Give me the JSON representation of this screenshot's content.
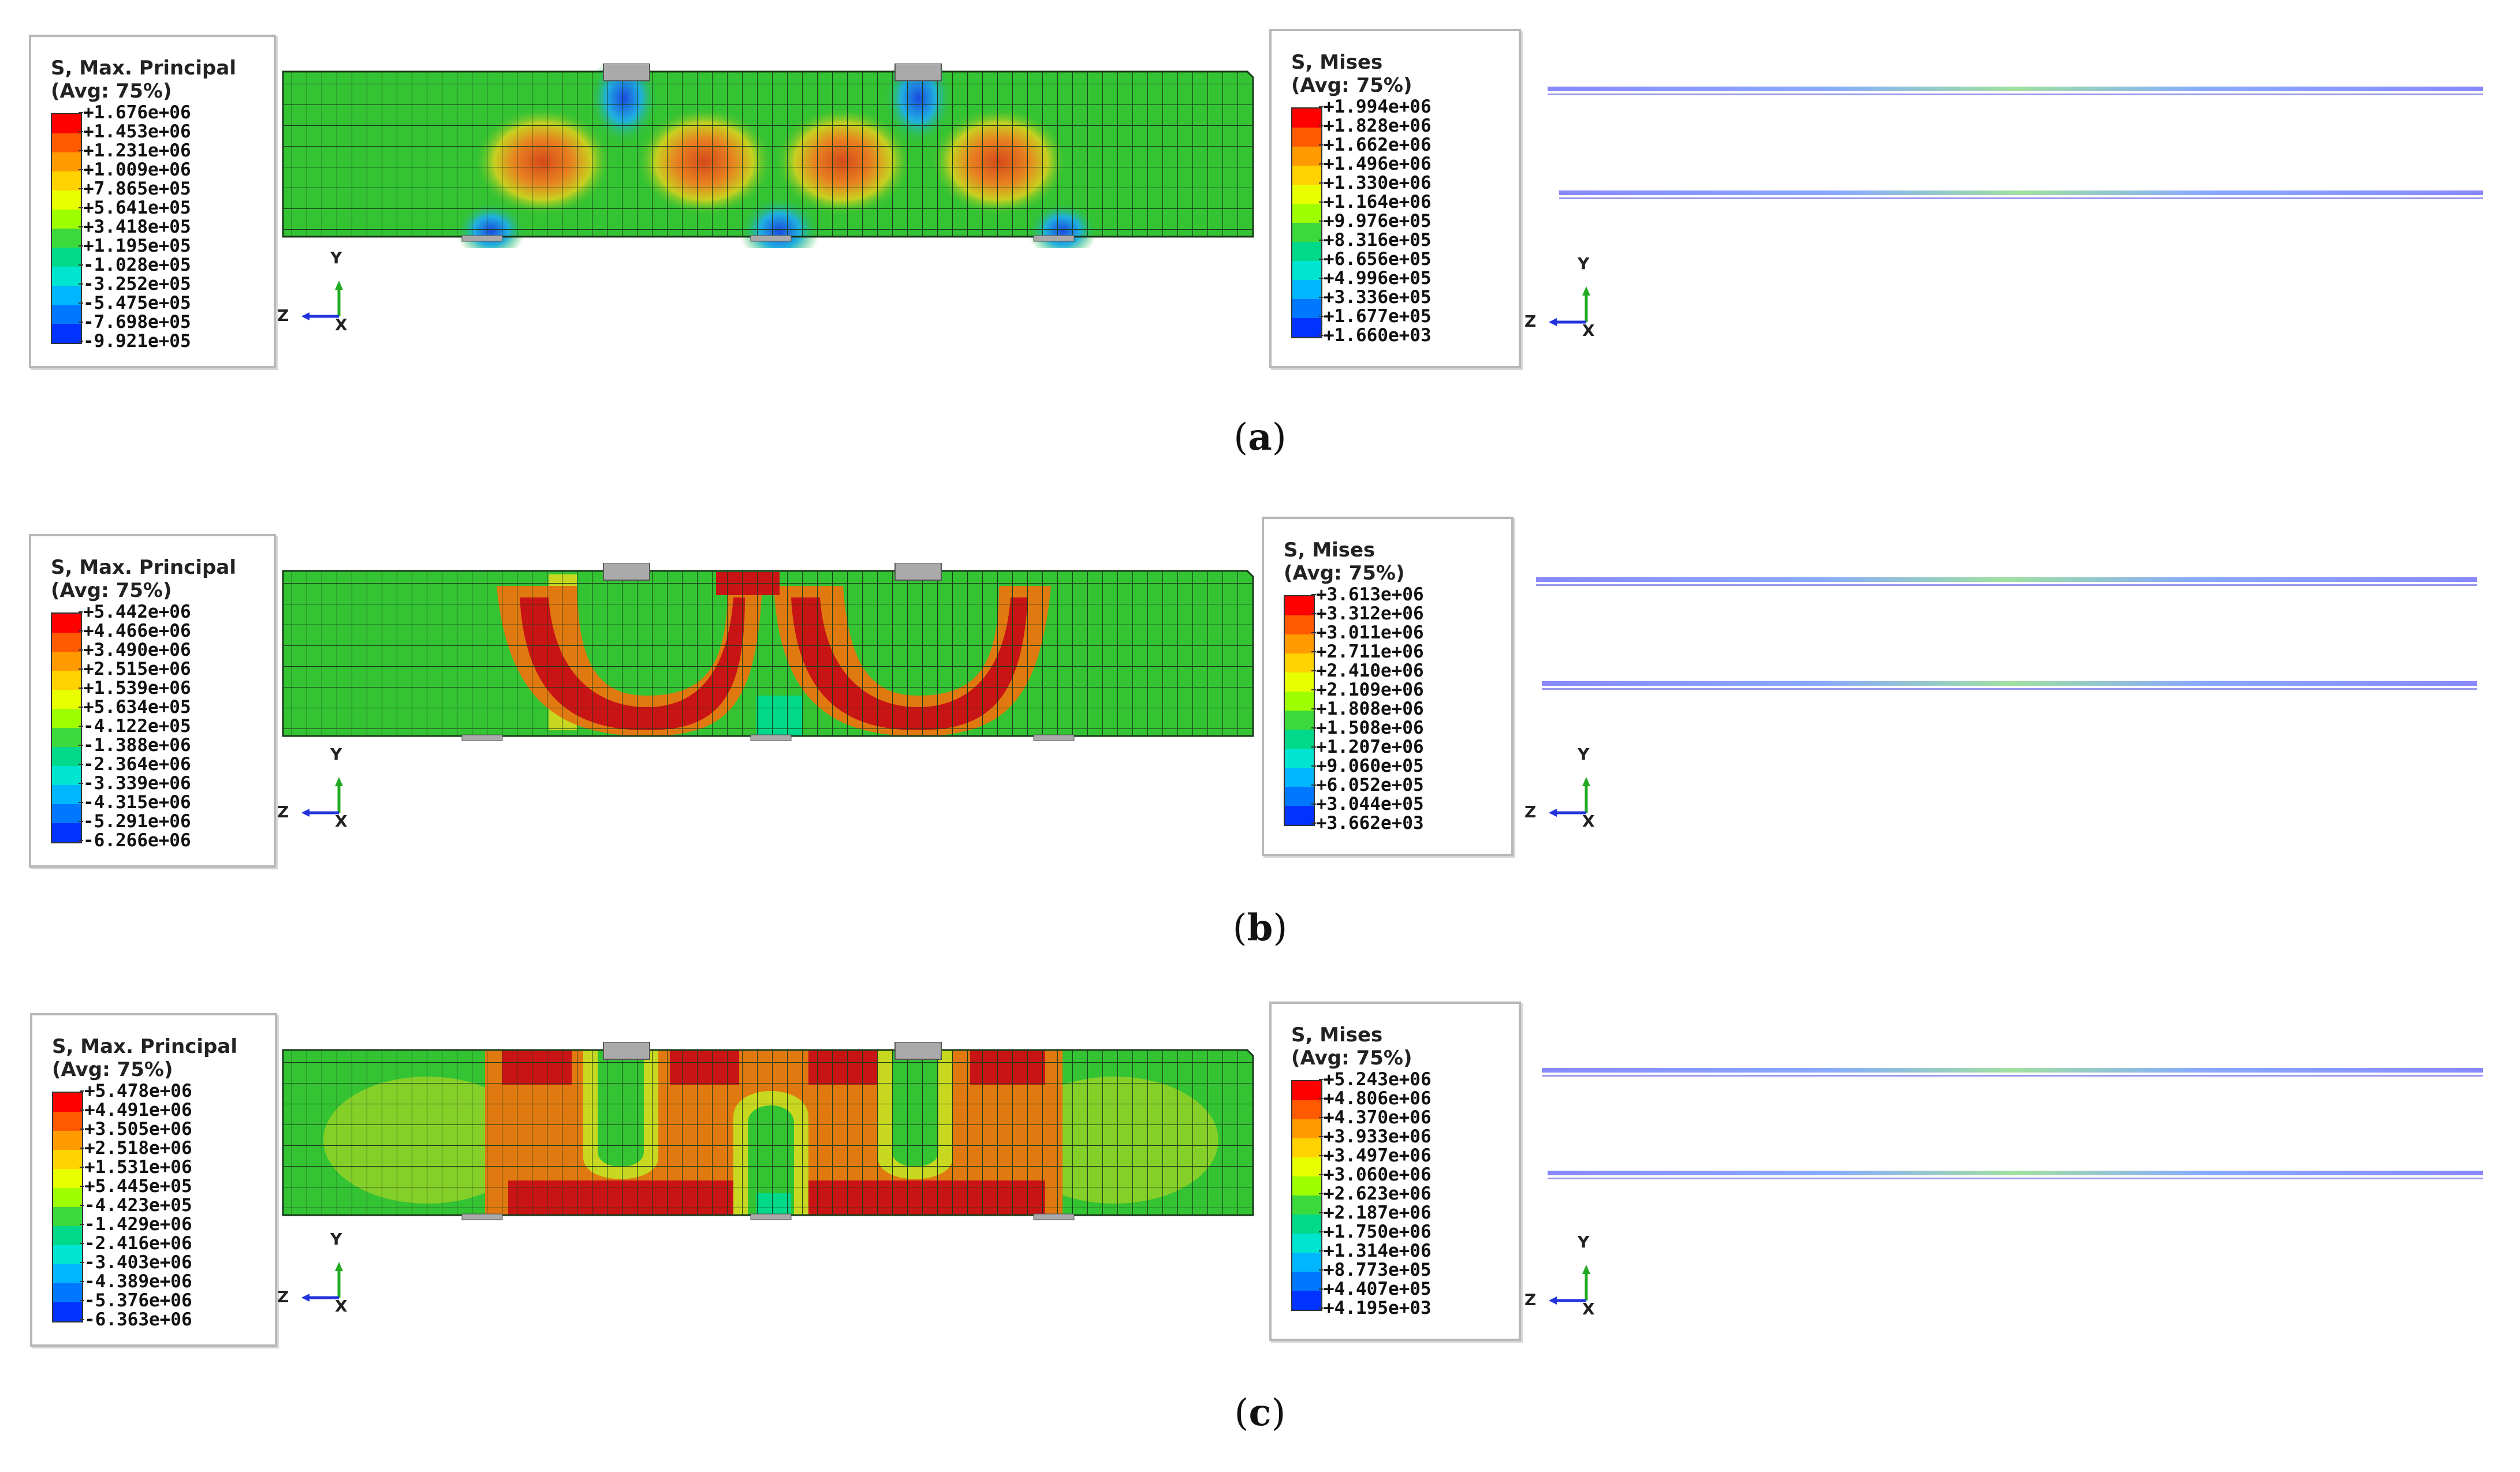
{
  "panels": [
    {
      "caption_letter": "a",
      "max_principal": {
        "title_line1": "S, Max. Principal",
        "title_line2": "(Avg: 75%)",
        "values": [
          "+1.676e+06",
          "+1.453e+06",
          "+1.231e+06",
          "+1.009e+06",
          "+7.865e+05",
          "+5.641e+05",
          "+3.418e+05",
          "+1.195e+05",
          "-1.028e+05",
          "-3.252e+05",
          "-5.475e+05",
          "-7.698e+05",
          "-9.921e+05"
        ]
      },
      "mises": {
        "title_line1": "S, Mises",
        "title_line2": "(Avg: 75%)",
        "values": [
          "+1.994e+06",
          "+1.828e+06",
          "+1.662e+06",
          "+1.496e+06",
          "+1.330e+06",
          "+1.164e+06",
          "+9.976e+05",
          "+8.316e+05",
          "+6.656e+05",
          "+4.996e+05",
          "+3.336e+05",
          "+1.677e+05",
          "+1.660e+03"
        ]
      }
    },
    {
      "caption_letter": "b",
      "max_principal": {
        "title_line1": "S, Max. Principal",
        "title_line2": "(Avg: 75%)",
        "values": [
          "+5.442e+06",
          "+4.466e+06",
          "+3.490e+06",
          "+2.515e+06",
          "+1.539e+06",
          "+5.634e+05",
          "-4.122e+05",
          "-1.388e+06",
          "-2.364e+06",
          "-3.339e+06",
          "-4.315e+06",
          "-5.291e+06",
          "-6.266e+06"
        ]
      },
      "mises": {
        "title_line1": "S, Mises",
        "title_line2": "(Avg: 75%)",
        "values": [
          "+3.613e+06",
          "+3.312e+06",
          "+3.011e+06",
          "+2.711e+06",
          "+2.410e+06",
          "+2.109e+06",
          "+1.808e+06",
          "+1.508e+06",
          "+1.207e+06",
          "+9.060e+05",
          "+6.052e+05",
          "+3.044e+05",
          "+3.662e+03"
        ]
      }
    },
    {
      "caption_letter": "c",
      "max_principal": {
        "title_line1": "S, Max. Principal",
        "title_line2": "(Avg: 75%)",
        "values": [
          "+5.478e+06",
          "+4.491e+06",
          "+3.505e+06",
          "+2.518e+06",
          "+1.531e+06",
          "+5.445e+05",
          "-4.423e+05",
          "-1.429e+06",
          "-2.416e+06",
          "-3.403e+06",
          "-4.389e+06",
          "-5.376e+06",
          "-6.363e+06"
        ]
      },
      "mises": {
        "title_line1": "S, Mises",
        "title_line2": "(Avg: 75%)",
        "values": [
          "+5.243e+06",
          "+4.806e+06",
          "+4.370e+06",
          "+3.933e+06",
          "+3.497e+06",
          "+3.060e+06",
          "+2.623e+06",
          "+2.187e+06",
          "+1.750e+06",
          "+1.314e+06",
          "+8.773e+05",
          "+4.407e+05",
          "+4.195e+03"
        ]
      }
    }
  ],
  "triad": {
    "y_label": "Y",
    "z_label": "Z",
    "x_label": "X"
  },
  "contour_colors": [
    "#ff0000",
    "#ff5a00",
    "#ff9a00",
    "#ffd200",
    "#e8ff00",
    "#9dff00",
    "#3cd93c",
    "#00d88a",
    "#00e5d0",
    "#00b7ff",
    "#0077ff",
    "#0033ff",
    "#0000e0"
  ],
  "colors": {
    "beam_green": "#33c333",
    "beam_red": "#c81414",
    "beam_orange": "#e07a10",
    "beam_yellow": "#c8d820",
    "mesh_line": "#1a3a1a"
  }
}
